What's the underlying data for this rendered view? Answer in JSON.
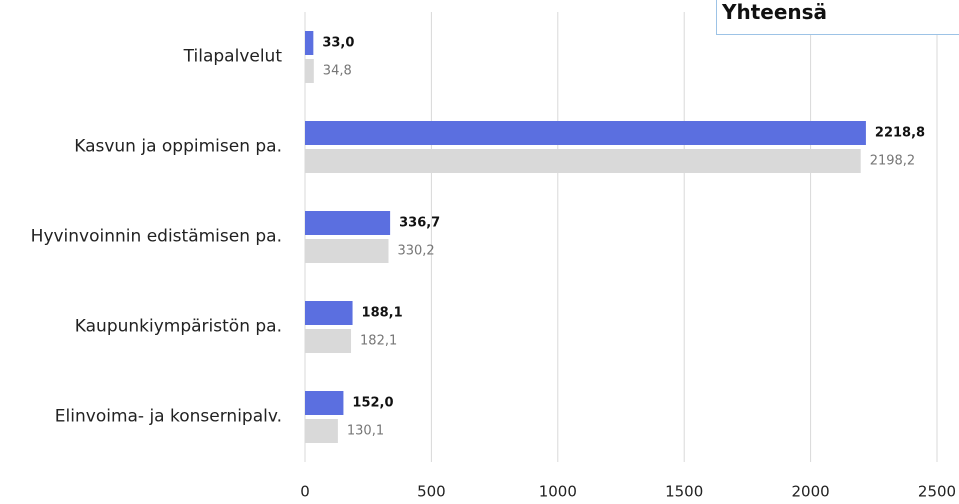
{
  "chart_data": {
    "type": "bar",
    "orientation": "horizontal",
    "annotation": "Yhteensä",
    "categories": [
      "Tilapalvelut",
      "Kasvun ja oppimisen pa.",
      "Hyvinvoinnin edistämisen pa.",
      "Kaupunkiympäristön pa.",
      "Elinvoima- ja konsernipalv."
    ],
    "series": [
      {
        "color": "#5b6fe0",
        "values": [
          33.0,
          2218.8,
          336.7,
          188.1,
          152.0
        ],
        "value_labels": [
          "33,0",
          "2218,8",
          "336,7",
          "188,1",
          "152,0"
        ]
      },
      {
        "color": "#d9d9d9",
        "values": [
          34.8,
          2198.2,
          330.2,
          182.1,
          130.1
        ],
        "value_labels": [
          "34,8",
          "2198,2",
          "330,2",
          "182,1",
          "130,1"
        ]
      }
    ],
    "xlim": [
      0,
      2500
    ],
    "xticks": [
      0,
      500,
      1000,
      1500,
      2000,
      2500
    ],
    "grid": true
  }
}
